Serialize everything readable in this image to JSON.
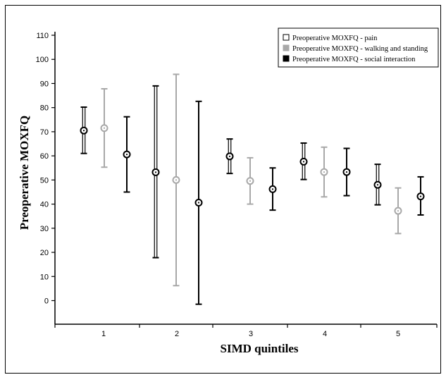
{
  "chart_data": {
    "type": "errorbar",
    "xlabel": "SIMD quintiles",
    "ylabel": "Preoperative MOXFQ",
    "ylim": [
      -10,
      110
    ],
    "yticks": [
      0,
      10,
      20,
      30,
      40,
      50,
      60,
      70,
      80,
      90,
      100,
      110
    ],
    "categories": [
      "1",
      "2",
      "3",
      "4",
      "5"
    ],
    "grid": false,
    "legend_position": "top-right",
    "series": [
      {
        "name": "Preoperative MOXFQ - pain",
        "color": "#000000",
        "bar_style": "hollow",
        "means": [
          70.5,
          53.2,
          59.8,
          57.6,
          48.0
        ],
        "lower": [
          61.0,
          17.8,
          52.7,
          50.2,
          39.7
        ],
        "upper": [
          80.2,
          89.0,
          67.0,
          65.3,
          56.5
        ]
      },
      {
        "name": "Preoperative MOXFQ - walking and standing",
        "color": "#a8a8a8",
        "bar_style": "solid",
        "means": [
          71.5,
          50.0,
          49.6,
          53.3,
          37.2
        ],
        "lower": [
          55.3,
          6.2,
          40.0,
          43.0,
          27.8
        ],
        "upper": [
          87.8,
          93.8,
          59.2,
          63.6,
          46.7
        ]
      },
      {
        "name": "Preoperative MOXFQ - social interaction",
        "color": "#000000",
        "bar_style": "solid",
        "means": [
          60.6,
          40.6,
          46.2,
          53.3,
          43.2
        ],
        "lower": [
          45.0,
          -1.5,
          37.5,
          43.5,
          35.5
        ],
        "upper": [
          76.2,
          82.6,
          55.0,
          63.1,
          51.3
        ]
      }
    ]
  }
}
